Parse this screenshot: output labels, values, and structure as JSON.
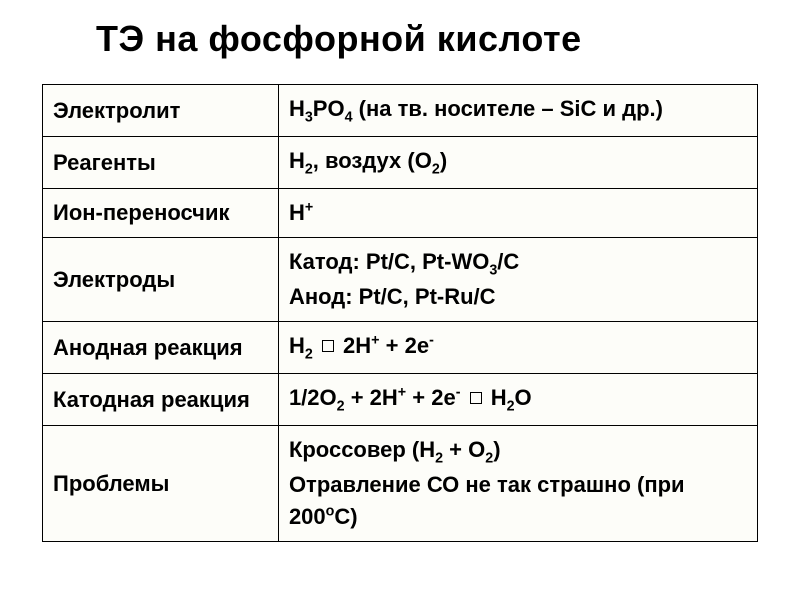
{
  "title": "ТЭ на фосфорной кислоте",
  "table": {
    "background_color": "#fdfdf9",
    "border_color": "#000000",
    "font_size_pt": 17,
    "font_weight": "bold",
    "col_widths_pct": [
      33,
      67
    ],
    "rows": [
      {
        "label": "Электролит",
        "value_html": "H<span class=\"sub\">3</span>PO<span class=\"sub\">4</span> (на тв. носителе – SiC и др.)"
      },
      {
        "label": "Реагенты",
        "value_html": "H<span class=\"sub\">2</span>, воздух (O<span class=\"sub\">2</span>)"
      },
      {
        "label": "Ион-переносчик",
        "value_html": "H<span class=\"sup\">+</span>"
      },
      {
        "label": "Электроды",
        "value_html": "Катод: Pt/C, Pt-WO<span class=\"sub\">3</span>/C<br>Анод: Pt/C, Pt-Ru/C"
      },
      {
        "label": "Анодная реакция",
        "value_html": "H<span class=\"sub\">2</span> <span class=\"arrow\"></span> 2H<span class=\"sup\">+</span> + 2e<span class=\"sup\">-</span>"
      },
      {
        "label": "Катодная реакция",
        "value_html": "1/2O<span class=\"sub\">2</span> + 2H<span class=\"sup\">+</span> + 2e<span class=\"sup\">-</span> <span class=\"arrow\"></span> H<span class=\"sub\">2</span>O"
      },
      {
        "label": "Проблемы",
        "value_html": "Кроссовер (H<span class=\"sub\">2</span> + O<span class=\"sub\">2</span>)<br>Отравление СО не так страшно (при 200<span class=\"sup\">о</span>С)"
      }
    ]
  }
}
